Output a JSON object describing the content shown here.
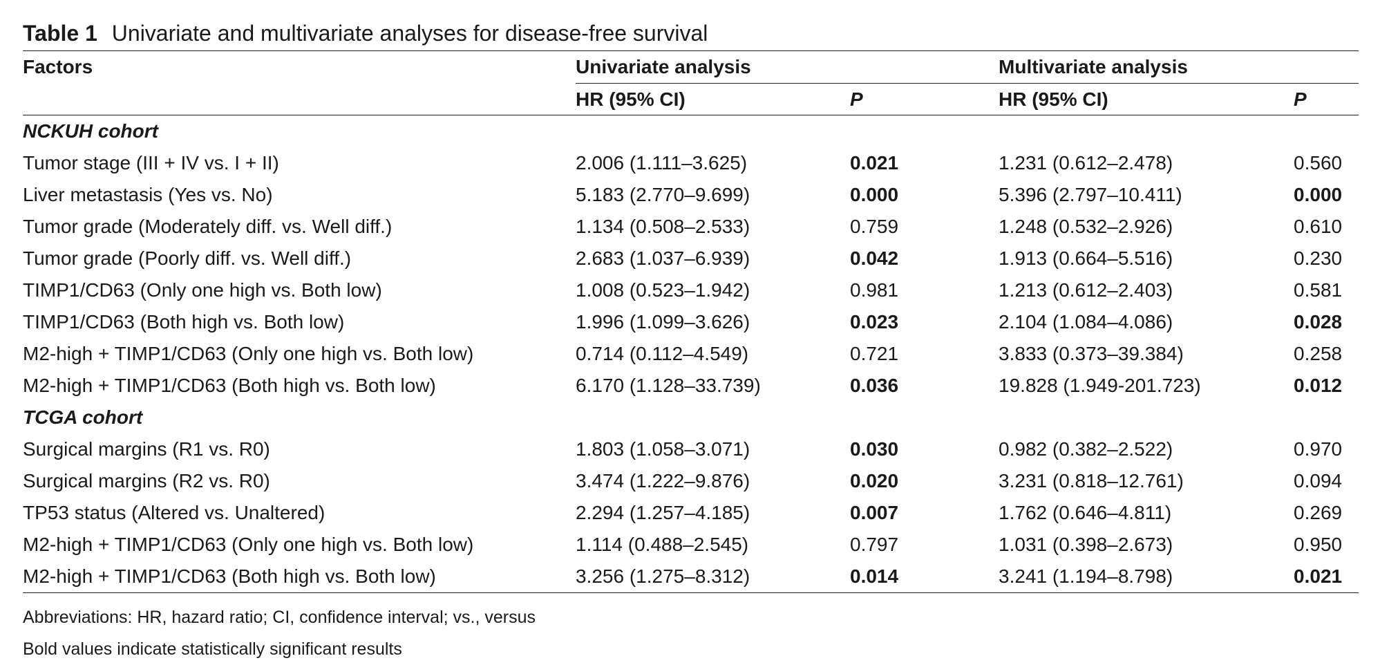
{
  "caption": {
    "label": "Table 1",
    "text": "Univariate and multivariate analyses for disease-free survival"
  },
  "header": {
    "factors": "Factors",
    "univariate": "Univariate analysis",
    "multivariate": "Multivariate analysis",
    "hr_label": "HR (95% CI)",
    "p_label": "P"
  },
  "sections": [
    {
      "title": "NCKUH cohort",
      "rows": [
        {
          "factor": "Tumor stage (III + IV vs. I + II)",
          "uni_hr": "2.006 (1.111–3.625)",
          "uni_p": "0.021",
          "uni_sig": true,
          "multi_hr": "1.231 (0.612–2.478)",
          "multi_p": "0.560",
          "multi_sig": false
        },
        {
          "factor": "Liver metastasis (Yes vs. No)",
          "uni_hr": "5.183 (2.770–9.699)",
          "uni_p": "0.000",
          "uni_sig": true,
          "multi_hr": "5.396 (2.797–10.411)",
          "multi_p": "0.000",
          "multi_sig": true
        },
        {
          "factor": "Tumor grade (Moderately diff. vs. Well diff.)",
          "uni_hr": "1.134 (0.508–2.533)",
          "uni_p": "0.759",
          "uni_sig": false,
          "multi_hr": "1.248 (0.532–2.926)",
          "multi_p": "0.610",
          "multi_sig": false
        },
        {
          "factor": "Tumor grade (Poorly diff. vs. Well diff.)",
          "uni_hr": "2.683 (1.037–6.939)",
          "uni_p": "0.042",
          "uni_sig": true,
          "multi_hr": "1.913 (0.664–5.516)",
          "multi_p": "0.230",
          "multi_sig": false
        },
        {
          "factor": "TIMP1/CD63 (Only one high vs. Both low)",
          "uni_hr": "1.008 (0.523–1.942)",
          "uni_p": "0.981",
          "uni_sig": false,
          "multi_hr": "1.213 (0.612–2.403)",
          "multi_p": "0.581",
          "multi_sig": false
        },
        {
          "factor": "TIMP1/CD63 (Both high vs. Both low)",
          "uni_hr": "1.996 (1.099–3.626)",
          "uni_p": "0.023",
          "uni_sig": true,
          "multi_hr": "2.104 (1.084–4.086)",
          "multi_p": "0.028",
          "multi_sig": true
        },
        {
          "factor": "M2-high + TIMP1/CD63 (Only one high vs. Both low)",
          "uni_hr": "0.714 (0.112–4.549)",
          "uni_p": "0.721",
          "uni_sig": false,
          "multi_hr": "3.833 (0.373–39.384)",
          "multi_p": "0.258",
          "multi_sig": false
        },
        {
          "factor": "M2-high + TIMP1/CD63 (Both high vs. Both low)",
          "uni_hr": "6.170 (1.128–33.739)",
          "uni_p": "0.036",
          "uni_sig": true,
          "multi_hr": "19.828 (1.949-201.723)",
          "multi_p": "0.012",
          "multi_sig": true
        }
      ]
    },
    {
      "title": "TCGA cohort",
      "rows": [
        {
          "factor": "Surgical margins (R1 vs. R0)",
          "uni_hr": "1.803 (1.058–3.071)",
          "uni_p": "0.030",
          "uni_sig": true,
          "multi_hr": "0.982 (0.382–2.522)",
          "multi_p": "0.970",
          "multi_sig": false
        },
        {
          "factor": "Surgical margins (R2 vs. R0)",
          "uni_hr": "3.474 (1.222–9.876)",
          "uni_p": "0.020",
          "uni_sig": true,
          "multi_hr": "3.231 (0.818–12.761)",
          "multi_p": "0.094",
          "multi_sig": false
        },
        {
          "factor": "TP53 status (Altered vs. Unaltered)",
          "uni_hr": "2.294 (1.257–4.185)",
          "uni_p": "0.007",
          "uni_sig": true,
          "multi_hr": "1.762 (0.646–4.811)",
          "multi_p": "0.269",
          "multi_sig": false
        },
        {
          "factor": "M2-high + TIMP1/CD63 (Only one high vs. Both low)",
          "uni_hr": "1.114 (0.488–2.545)",
          "uni_p": "0.797",
          "uni_sig": false,
          "multi_hr": "1.031 (0.398–2.673)",
          "multi_p": "0.950",
          "multi_sig": false
        },
        {
          "factor": "M2-high + TIMP1/CD63 (Both high vs. Both low)",
          "uni_hr": "3.256 (1.275–8.312)",
          "uni_p": "0.014",
          "uni_sig": true,
          "multi_hr": "3.241 (1.194–8.798)",
          "multi_p": "0.021",
          "multi_sig": true
        }
      ]
    }
  ],
  "footnotes": [
    "Abbreviations: HR, hazard ratio; CI, confidence interval; vs., versus",
    "Bold values indicate statistically significant results"
  ]
}
